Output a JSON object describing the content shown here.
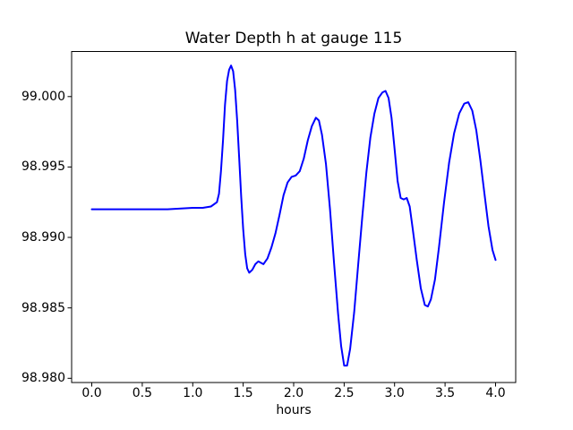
{
  "chart_data": {
    "type": "line",
    "title": "Water Depth h at gauge 115",
    "xlabel": "hours",
    "ylabel": "",
    "xlim": [
      -0.2,
      4.2
    ],
    "ylim": [
      98.9797,
      99.0032
    ],
    "xticks": [
      0.0,
      0.5,
      1.0,
      1.5,
      2.0,
      2.5,
      3.0,
      3.5,
      4.0
    ],
    "xtick_labels": [
      "0.0",
      "0.5",
      "1.0",
      "1.5",
      "2.0",
      "2.5",
      "3.0",
      "3.5",
      "4.0"
    ],
    "yticks": [
      98.98,
      98.985,
      98.99,
      98.995,
      99.0
    ],
    "ytick_labels": [
      "98.980",
      "98.985",
      "98.990",
      "98.995",
      "99.000"
    ],
    "grid": false,
    "legend": null,
    "line_color": "#0000ff",
    "axis_color": "#000000",
    "background_color": "#ffffff",
    "series": [
      {
        "name": "water-depth-h",
        "color": "#0000ff",
        "points": [
          [
            0.0,
            98.992
          ],
          [
            0.25,
            98.992
          ],
          [
            0.5,
            98.992
          ],
          [
            0.75,
            98.992
          ],
          [
            1.0,
            98.9921
          ],
          [
            1.1,
            98.9921
          ],
          [
            1.18,
            98.9922
          ],
          [
            1.24,
            98.9925
          ],
          [
            1.26,
            98.9931
          ],
          [
            1.28,
            98.9947
          ],
          [
            1.3,
            98.9969
          ],
          [
            1.32,
            98.9994
          ],
          [
            1.34,
            99.0011
          ],
          [
            1.36,
            99.0019
          ],
          [
            1.38,
            99.0022
          ],
          [
            1.4,
            99.0018
          ],
          [
            1.42,
            99.0005
          ],
          [
            1.44,
            98.9983
          ],
          [
            1.46,
            98.9957
          ],
          [
            1.48,
            98.9929
          ],
          [
            1.5,
            98.9906
          ],
          [
            1.52,
            98.9888
          ],
          [
            1.54,
            98.9878
          ],
          [
            1.56,
            98.9875
          ],
          [
            1.59,
            98.9877
          ],
          [
            1.62,
            98.9881
          ],
          [
            1.65,
            98.9883
          ],
          [
            1.7,
            98.9881
          ],
          [
            1.74,
            98.9885
          ],
          [
            1.78,
            98.9893
          ],
          [
            1.82,
            98.9903
          ],
          [
            1.86,
            98.9916
          ],
          [
            1.9,
            98.993
          ],
          [
            1.94,
            98.9939
          ],
          [
            1.98,
            98.9943
          ],
          [
            2.02,
            98.9944
          ],
          [
            2.06,
            98.9947
          ],
          [
            2.1,
            98.9956
          ],
          [
            2.14,
            98.9969
          ],
          [
            2.18,
            98.9979
          ],
          [
            2.22,
            98.9985
          ],
          [
            2.25,
            98.9983
          ],
          [
            2.28,
            98.9973
          ],
          [
            2.32,
            98.9952
          ],
          [
            2.36,
            98.992
          ],
          [
            2.4,
            98.9882
          ],
          [
            2.44,
            98.9846
          ],
          [
            2.47,
            98.9823
          ],
          [
            2.5,
            98.9809
          ],
          [
            2.53,
            98.9809
          ],
          [
            2.56,
            98.9821
          ],
          [
            2.6,
            98.9847
          ],
          [
            2.64,
            98.9881
          ],
          [
            2.68,
            98.9915
          ],
          [
            2.72,
            98.9946
          ],
          [
            2.76,
            98.9971
          ],
          [
            2.8,
            98.9988
          ],
          [
            2.84,
            98.9999
          ],
          [
            2.88,
            99.0003
          ],
          [
            2.91,
            99.0004
          ],
          [
            2.94,
            98.9999
          ],
          [
            2.97,
            98.9985
          ],
          [
            3.0,
            98.9963
          ],
          [
            3.03,
            98.994
          ],
          [
            3.06,
            98.9928
          ],
          [
            3.09,
            98.9927
          ],
          [
            3.12,
            98.9928
          ],
          [
            3.15,
            98.9922
          ],
          [
            3.18,
            98.9906
          ],
          [
            3.22,
            98.9884
          ],
          [
            3.26,
            98.9864
          ],
          [
            3.3,
            98.9852
          ],
          [
            3.33,
            98.9851
          ],
          [
            3.36,
            98.9856
          ],
          [
            3.4,
            98.987
          ],
          [
            3.44,
            98.9893
          ],
          [
            3.49,
            98.9925
          ],
          [
            3.54,
            98.9953
          ],
          [
            3.59,
            98.9974
          ],
          [
            3.64,
            98.9988
          ],
          [
            3.69,
            98.9995
          ],
          [
            3.73,
            98.9996
          ],
          [
            3.77,
            98.999
          ],
          [
            3.81,
            98.9976
          ],
          [
            3.85,
            98.9955
          ],
          [
            3.89,
            98.9931
          ],
          [
            3.93,
            98.9908
          ],
          [
            3.97,
            98.9891
          ],
          [
            4.0,
            98.9884
          ]
        ]
      }
    ]
  }
}
